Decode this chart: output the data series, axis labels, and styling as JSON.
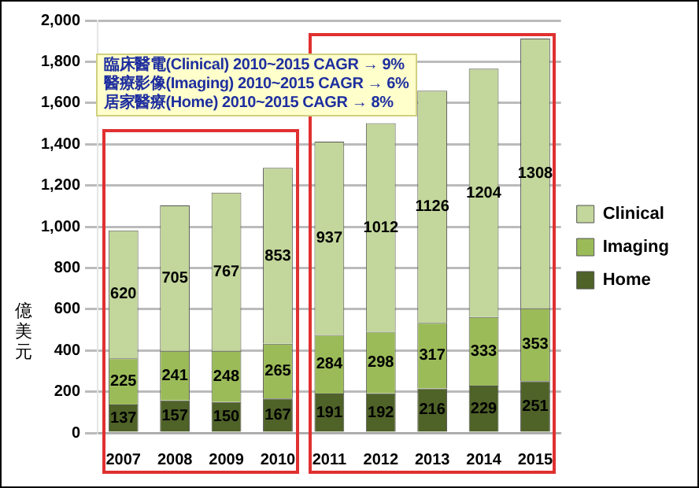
{
  "chart_data": {
    "type": "bar",
    "stacked": true,
    "ylabel": "億美元",
    "categories": [
      "2007",
      "2008",
      "2009",
      "2010",
      "2011",
      "2012",
      "2013",
      "2014",
      "2015"
    ],
    "series": [
      {
        "name": "Home",
        "color": "#4f6228",
        "values": [
          137,
          157,
          150,
          167,
          191,
          192,
          216,
          229,
          251
        ]
      },
      {
        "name": "Imaging",
        "color": "#9bbb59",
        "values": [
          225,
          241,
          248,
          265,
          284,
          298,
          317,
          333,
          353
        ]
      },
      {
        "name": "Clinical",
        "color": "#c3d69b",
        "values": [
          620,
          705,
          767,
          853,
          937,
          1012,
          1126,
          1204,
          1308
        ]
      }
    ],
    "ylim": [
      0,
      2000
    ],
    "yticks": [
      {
        "value": 0,
        "label": "0"
      },
      {
        "value": 200,
        "label": "200"
      },
      {
        "value": 400,
        "label": "400"
      },
      {
        "value": 600,
        "label": "600"
      },
      {
        "value": 800,
        "label": "800"
      },
      {
        "value": 1000,
        "label": "1,000"
      },
      {
        "value": 1200,
        "label": "1,200"
      },
      {
        "value": 1400,
        "label": "1,400"
      },
      {
        "value": 1600,
        "label": "1,600"
      },
      {
        "value": 1800,
        "label": "1,800"
      },
      {
        "value": 2000,
        "label": "2,000"
      }
    ],
    "grid": "y",
    "legend": "right",
    "data_labels": true,
    "annotations": [
      "臨床醫電(Clinical) 2010~2015 CAGR → 9%",
      "醫療影像(Imaging) 2010~2015 CAGR → 6%",
      "居家醫療(Home) 2010~2015 CAGR → 8%"
    ]
  }
}
